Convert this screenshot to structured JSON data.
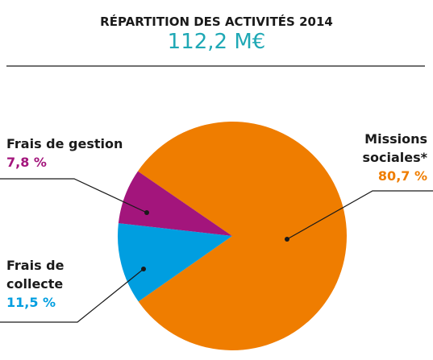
{
  "chart_data": {
    "type": "pie",
    "title": "RÉPARTITION DES ACTIVITÉS 2014",
    "subtitle": "112,2 M€",
    "categories": [
      "Missions sociales*",
      "Frais de collecte",
      "Frais de gestion"
    ],
    "values": [
      80.7,
      11.5,
      7.8
    ],
    "value_labels": [
      "80,7 %",
      "11,5 %",
      "7,8 %"
    ],
    "colors": [
      "#ef7d00",
      "#009ee0",
      "#a3157c"
    ]
  }
}
